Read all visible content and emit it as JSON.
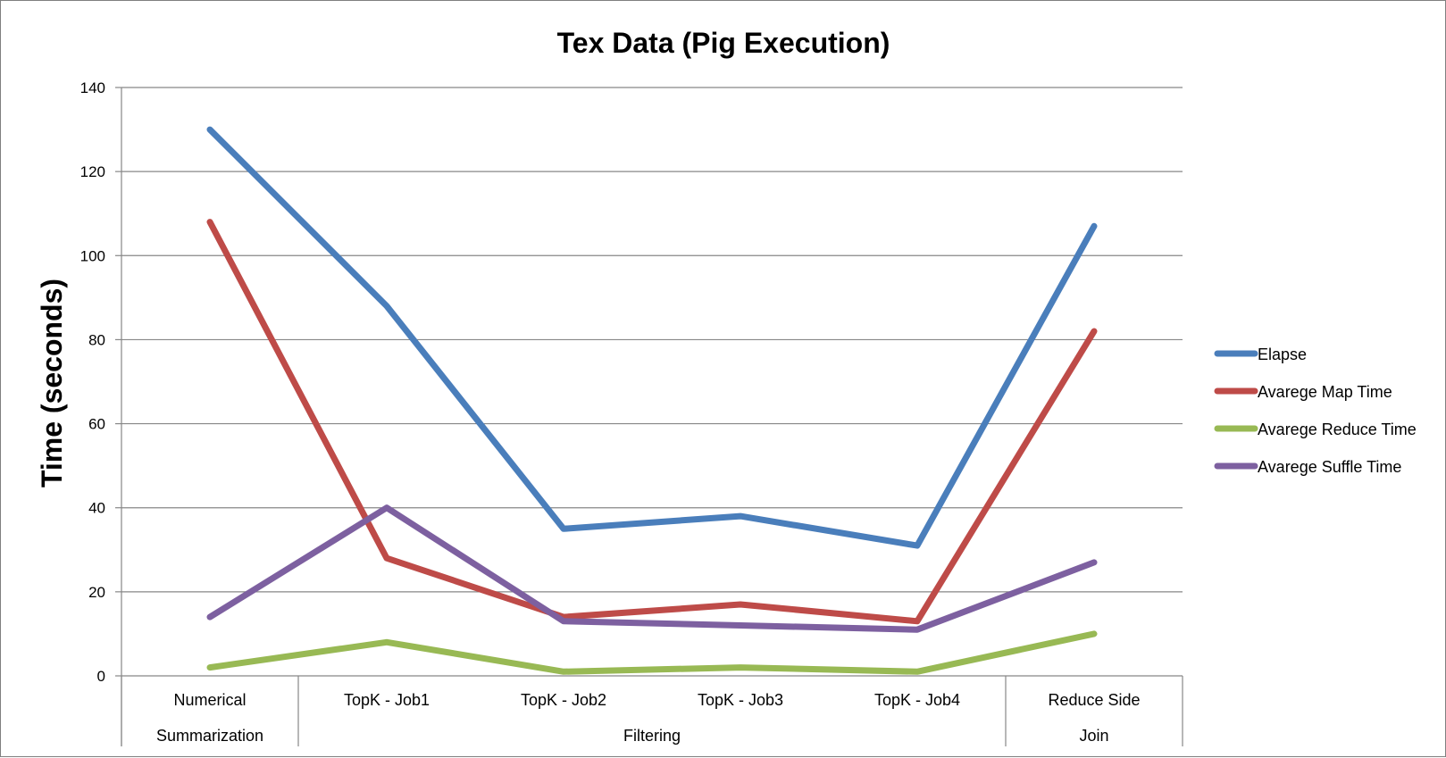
{
  "chart_data": {
    "type": "line",
    "title": "Tex Data (Pig Execution)",
    "ylabel": "Time (seconds)",
    "xlabel": "",
    "ylim": [
      0,
      140
    ],
    "yticks": [
      0,
      20,
      40,
      60,
      80,
      100,
      120,
      140
    ],
    "grid": true,
    "legend_position": "right",
    "categories": [
      "Numerical",
      "TopK - Job1",
      "TopK - Job2",
      "TopK - Job3",
      "TopK - Job4",
      "Reduce Side"
    ],
    "category_groups": [
      {
        "label": "Summarization",
        "span": 1
      },
      {
        "label": "Filtering",
        "span": 4
      },
      {
        "label": "Join",
        "span": 1
      }
    ],
    "series": [
      {
        "name": "Elapse",
        "color": "#4a7ebb",
        "values": [
          130,
          88,
          35,
          38,
          31,
          107
        ]
      },
      {
        "name": "Avarege Map Time",
        "color": "#be4b48",
        "values": [
          108,
          28,
          14,
          17,
          13,
          82
        ]
      },
      {
        "name": "Avarege Reduce Time",
        "color": "#98b954",
        "values": [
          2,
          8,
          1,
          2,
          1,
          10
        ]
      },
      {
        "name": "Avarege Suffle Time",
        "color": "#7d60a0",
        "values": [
          14,
          40,
          13,
          12,
          11,
          27
        ]
      }
    ]
  }
}
